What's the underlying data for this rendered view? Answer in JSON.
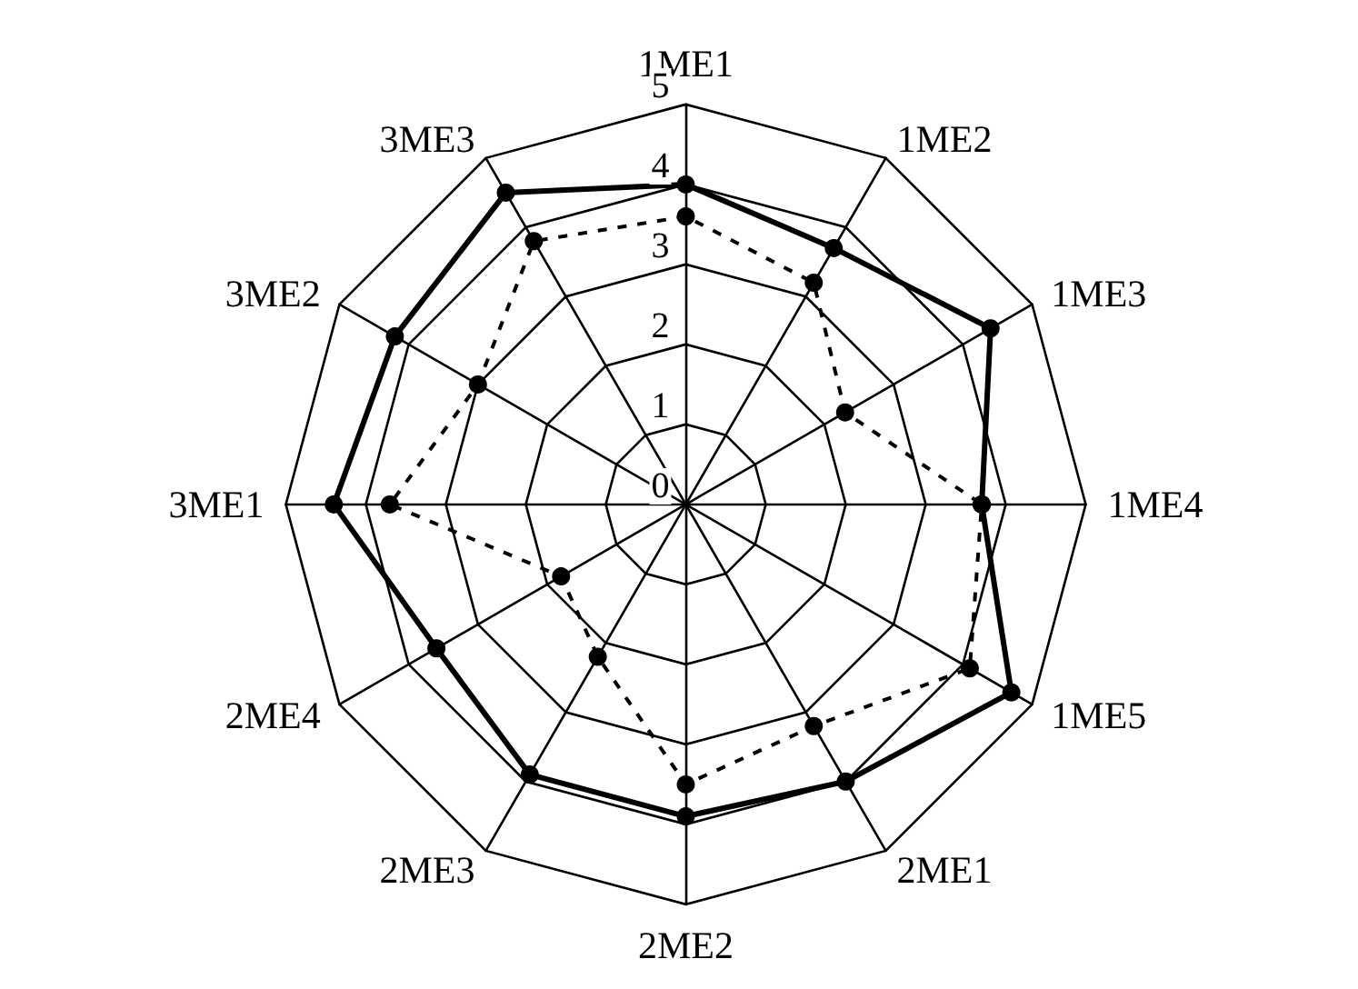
{
  "chart_data": {
    "type": "radar",
    "categories": [
      "1ME1",
      "1ME2",
      "1ME3",
      "1ME4",
      "1ME5",
      "2ME1",
      "2ME2",
      "2ME3",
      "2ME4",
      "3ME1",
      "3ME2",
      "3ME3"
    ],
    "series": [
      {
        "color": "#000000",
        "line_style": "solid",
        "values": [
          4.0,
          3.7,
          4.4,
          3.7,
          4.7,
          4.0,
          3.9,
          3.9,
          3.6,
          4.4,
          4.2,
          4.5
        ]
      },
      {
        "color": "#000000",
        "line_style": "dashed",
        "values": [
          3.6,
          3.2,
          2.3,
          3.7,
          4.1,
          3.2,
          3.5,
          2.2,
          1.8,
          3.7,
          3.0,
          3.8
        ]
      }
    ],
    "ylim": [
      0,
      5
    ],
    "yticks": [
      0,
      1,
      2,
      3,
      4,
      5
    ],
    "marker": "circle",
    "grid": true
  }
}
